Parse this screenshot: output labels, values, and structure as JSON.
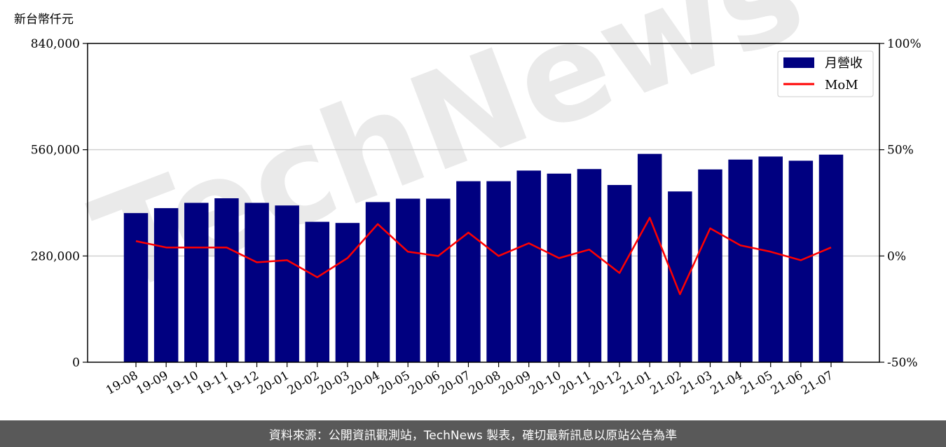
{
  "chart_data": {
    "type": "bar",
    "y_unit_label": "新台幣仟元",
    "categories": [
      "19-08",
      "19-09",
      "19-10",
      "19-11",
      "19-12",
      "20-01",
      "20-02",
      "20-03",
      "20-04",
      "20-05",
      "20-06",
      "20-07",
      "20-08",
      "20-09",
      "20-10",
      "20-11",
      "20-12",
      "21-01",
      "21-02",
      "21-03",
      "21-04",
      "21-05",
      "21-06",
      "21-07"
    ],
    "series": [
      {
        "name": "月營收",
        "kind": "bar",
        "axis": "left",
        "color": "#000080",
        "values": [
          393000,
          406000,
          420000,
          432000,
          420000,
          413000,
          370000,
          367000,
          422000,
          431000,
          431000,
          477000,
          477000,
          505000,
          497000,
          509000,
          467000,
          549000,
          450000,
          508000,
          534000,
          542000,
          531000,
          547000
        ]
      },
      {
        "name": "MoM",
        "kind": "line",
        "axis": "right",
        "color": "#ff0000",
        "values": [
          7,
          4,
          4,
          4,
          -3,
          -2,
          -10,
          -1,
          15,
          2,
          0,
          11,
          0,
          6,
          -1,
          3,
          -8,
          18,
          -18,
          13,
          5,
          2,
          -2,
          4
        ]
      }
    ],
    "y_left": {
      "lim": [
        0,
        840000
      ],
      "ticks": [
        "0",
        "280,000",
        "560,000",
        "840,000"
      ]
    },
    "y_right": {
      "lim": [
        -50,
        100
      ],
      "ticks": [
        "-50%",
        "0%",
        "50%",
        "100%"
      ]
    },
    "grid": "horizontal",
    "legend": "top-right"
  },
  "watermark": "TechNews",
  "footer": "資料來源：公開資訊觀測站，TechNews 製表，確切最新訊息以原站公告為準"
}
